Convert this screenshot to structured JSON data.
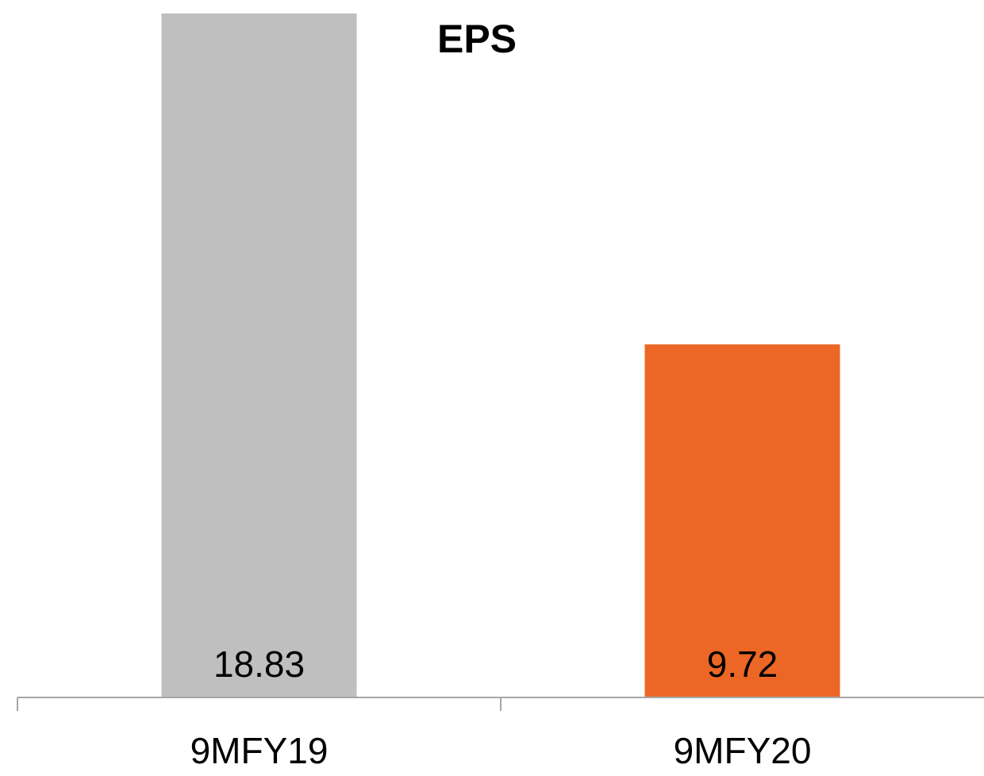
{
  "chart_data": {
    "type": "bar",
    "title": "EPS",
    "categories": [
      "9MFY19",
      "9MFY20"
    ],
    "values": [
      18.83,
      9.72
    ],
    "data_labels": [
      "18.83",
      "9.72"
    ],
    "bar_colors": [
      "#bfbfbf",
      "#ec6726"
    ],
    "ylim": [
      0,
      18.83
    ],
    "grid": false,
    "legend": "none",
    "xlabel": "",
    "ylabel": ""
  },
  "colors": {
    "axis": "#a6a6a6",
    "text": "#000000"
  }
}
